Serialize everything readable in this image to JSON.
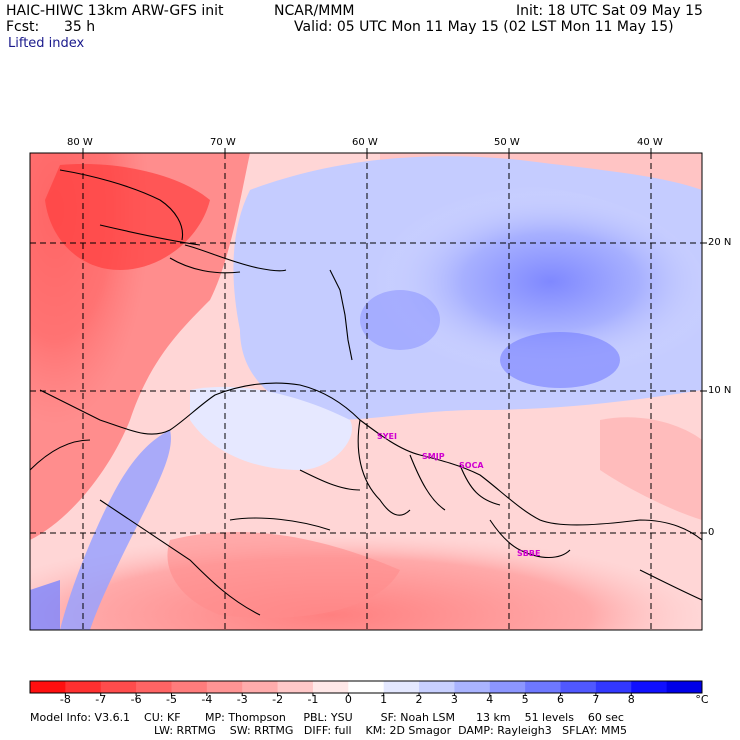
{
  "header": {
    "model_title": "HAIC-HIWC 13km ARW-GFS init",
    "center": "NCAR/MMM",
    "init": "Init: 18 UTC Sat 09 May 15",
    "fcst_label": "Fcst:",
    "fcst_value": "35 h",
    "valid": "Valid: 05 UTC Mon 11 May 15 (02 LST Mon 11 May 15)",
    "field": "Lifted index"
  },
  "axes": {
    "lon_labels": [
      "80 W",
      "70 W",
      "60 W",
      "50 W",
      "40 W"
    ],
    "lat_labels": [
      "20 N",
      "10 N",
      "0"
    ]
  },
  "stations": [
    "SYEI",
    "SMJP",
    "SOCA",
    "SBBE"
  ],
  "colorbar": {
    "labels": [
      "-8",
      "-7",
      "-6",
      "-5",
      "-4",
      "-3",
      "-2",
      "-1",
      "0",
      "1",
      "2",
      "3",
      "4",
      "5",
      "6",
      "7",
      "8"
    ],
    "unit": "°C",
    "colors": [
      "#ff0f0f",
      "#ff3030",
      "#ff4c4c",
      "#ff6464",
      "#ff7c7c",
      "#ff9494",
      "#ffacac",
      "#ffc8c8",
      "#ffe8e8",
      "#ffffff",
      "#e4e8ff",
      "#c8d0ff",
      "#aab4ff",
      "#8c96ff",
      "#6e78ff",
      "#5058ff",
      "#3238ff",
      "#1010ff",
      "#0000e8"
    ]
  },
  "footer": {
    "line1": "Model Info: V3.6.1    CU: KF       MP: Thompson     PBL: YSU        SF: Noah LSM      13 km    51 levels    60 sec",
    "line2": "LW: RRTMG    SW: RRTMG   DIFF: full    KM: 2D Smagor  DAMP: Rayleigh3   SFLAY: MM5"
  }
}
